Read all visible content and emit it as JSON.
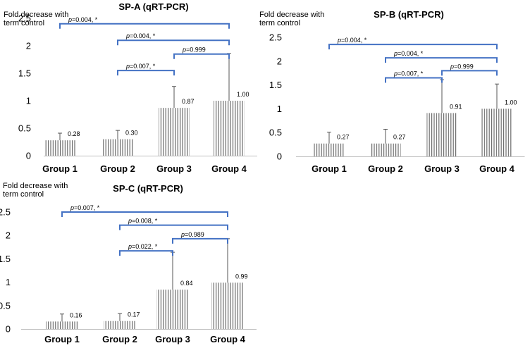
{
  "chart_data": [
    {
      "type": "bar",
      "title": "SP-A (qRT-PCR)",
      "ylabel_line1": "Fold decrease with",
      "ylabel_line2": "term control",
      "xlabel": "",
      "ylim": [
        0,
        2.5
      ],
      "yticks": [
        0,
        0.5,
        1,
        1.5,
        2,
        2.5
      ],
      "ytick_labels": [
        "0",
        "0.5",
        "1",
        "1.5",
        "2",
        "2.5"
      ],
      "categories": [
        "Group 1",
        "Group 2",
        "Group 3",
        "Group 4"
      ],
      "values": [
        0.28,
        0.3,
        0.87,
        1.0
      ],
      "value_labels": [
        "0.28",
        "0.30",
        "0.87",
        "1.00"
      ],
      "error_upper": [
        0.41,
        0.46,
        1.26,
        1.86
      ],
      "comparisons": [
        {
          "from": 0,
          "to": 3,
          "y": 2.4,
          "label": "=0.004, *"
        },
        {
          "from": 1,
          "to": 3,
          "y": 2.1,
          "label": "=0.004, *"
        },
        {
          "from": 2,
          "to": 3,
          "y": 1.85,
          "label": "=0.999"
        },
        {
          "from": 1,
          "to": 2,
          "y": 1.55,
          "label": "=0.007, *"
        }
      ]
    },
    {
      "type": "bar",
      "title": "SP-B (qRT-PCR)",
      "ylabel_line1": "Fold decrease with",
      "ylabel_line2": "term control",
      "xlabel": "",
      "ylim": [
        0,
        2.5
      ],
      "yticks": [
        0,
        0.5,
        1,
        1.5,
        2,
        2.5
      ],
      "ytick_labels": [
        "0",
        "0.5",
        "1",
        "1.5",
        "2",
        "2.5"
      ],
      "categories": [
        "Group 1",
        "Group 2",
        "Group 3",
        "Group 4"
      ],
      "values": [
        0.27,
        0.27,
        0.91,
        1.0
      ],
      "value_labels": [
        "0.27",
        "0.27",
        "0.91",
        "1.00"
      ],
      "error_upper": [
        0.51,
        0.57,
        1.61,
        1.52
      ],
      "comparisons": [
        {
          "from": 0,
          "to": 3,
          "y": 2.35,
          "label": "=0.004, *"
        },
        {
          "from": 1,
          "to": 3,
          "y": 2.07,
          "label": "=0.004, *"
        },
        {
          "from": 2,
          "to": 3,
          "y": 1.8,
          "label": "=0.999"
        },
        {
          "from": 1,
          "to": 2,
          "y": 1.65,
          "label": "=0.007, *"
        }
      ]
    },
    {
      "type": "bar",
      "title": "SP-C (qRT-PCR)",
      "ylabel_line1": "Fold decrease with",
      "ylabel_line2": "term control",
      "xlabel": "",
      "ylim": [
        0,
        2.5
      ],
      "yticks": [
        0,
        0.5,
        1,
        1.5,
        2,
        2.5
      ],
      "ytick_labels": [
        "0",
        "0.5",
        "1",
        "1.5",
        "2",
        "2.5"
      ],
      "categories": [
        "Group 1",
        "Group 2",
        "Group 3",
        "Group 4"
      ],
      "values": [
        0.16,
        0.17,
        0.84,
        0.99
      ],
      "value_labels": [
        "0.16",
        "0.17",
        "0.84",
        "0.99"
      ],
      "error_upper": [
        0.32,
        0.33,
        1.64,
        1.93
      ],
      "comparisons": [
        {
          "from": 0,
          "to": 3,
          "y": 2.5,
          "label": "=0.007, *"
        },
        {
          "from": 1,
          "to": 3,
          "y": 2.22,
          "label": "=0.008, *"
        },
        {
          "from": 2,
          "to": 3,
          "y": 1.93,
          "label": "=0.989"
        },
        {
          "from": 1,
          "to": 2,
          "y": 1.67,
          "label": "=0.022, *"
        }
      ]
    }
  ],
  "colors": {
    "bar_stripe": "#6b6b6b",
    "error_bar": "#555555",
    "bracket": "#4472c4",
    "axis": "#bfbfbf",
    "text": "#000000"
  },
  "p_symbol": "p"
}
